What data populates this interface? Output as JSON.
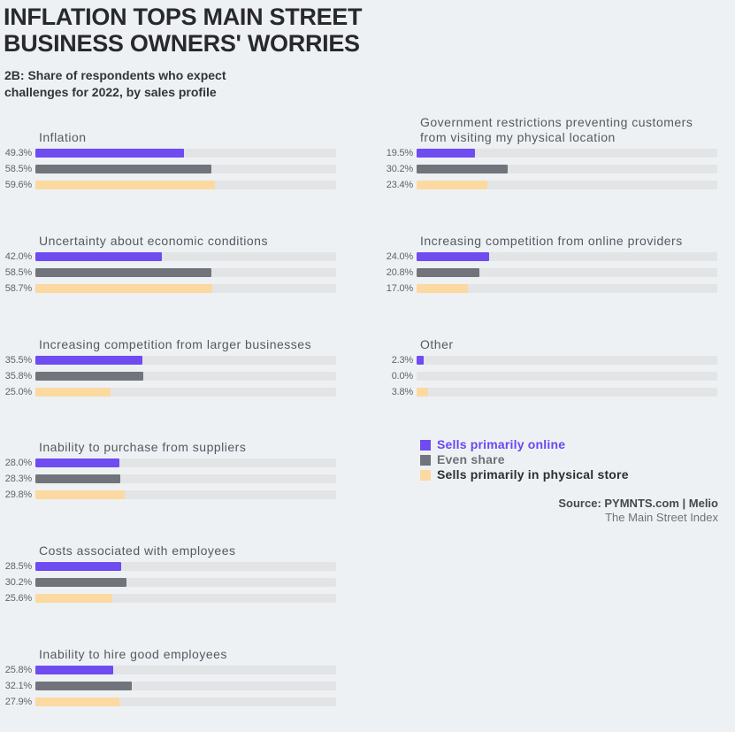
{
  "header": {
    "title_line1": "INFLATION TOPS MAIN STREET",
    "title_line2": "BUSINESS OWNERS' WORRIES",
    "subtitle_line1": "2B: Share of respondents who expect",
    "subtitle_line2": "challenges for 2022, by sales profile"
  },
  "legend": {
    "items": [
      {
        "label": "Sells primarily online",
        "swatch_color": "#6e4cf1",
        "text_color": "#6b46f2"
      },
      {
        "label": "Even share",
        "swatch_color": "#71747b",
        "text_color": "#6d7076"
      },
      {
        "label": "Sells primarily in physical store",
        "swatch_color": "#fbd9a0",
        "text_color": "#2d2e30"
      }
    ]
  },
  "source": {
    "line1": "Source: PYMNTS.com | Melio",
    "line2": "The Main Street Index"
  },
  "chart_data": {
    "type": "bar",
    "orientation": "horizontal",
    "unit": "%",
    "axis_max": 100,
    "grid": false,
    "legend_position": "right-middle",
    "title": "INFLATION TOPS MAIN STREET BUSINESS OWNERS' WORRIES",
    "subtitle": "2B: Share of respondents who expect challenges for 2022, by sales profile",
    "series": [
      "Sells primarily online",
      "Even share",
      "Sells primarily in physical store"
    ],
    "colors": [
      "#6e4cf1",
      "#71747b",
      "#fbd9a0"
    ],
    "groups": [
      {
        "title": "Inflation",
        "column": "left",
        "values": [
          49.3,
          58.5,
          59.6
        ],
        "display": [
          "49.3%",
          "58.5%",
          "59.6%"
        ]
      },
      {
        "title": "Uncertainty about economic conditions",
        "column": "left",
        "values": [
          42.0,
          58.5,
          58.7
        ],
        "display": [
          "42.0%",
          "58.5%",
          "58.7%"
        ]
      },
      {
        "title": "Increasing competition from larger businesses",
        "column": "left",
        "values": [
          35.5,
          35.8,
          25.0
        ],
        "display": [
          "35.5%",
          "35.8%",
          "25.0%"
        ]
      },
      {
        "title": "Inability to purchase from suppliers",
        "column": "left",
        "values": [
          28.0,
          28.3,
          29.8
        ],
        "display": [
          "28.0%",
          "28.3%",
          "29.8%"
        ]
      },
      {
        "title": "Costs associated with employees",
        "column": "left",
        "values": [
          28.5,
          30.2,
          25.6
        ],
        "display": [
          "28.5%",
          "30.2%",
          "25.6%"
        ]
      },
      {
        "title": "Inability to hire good employees",
        "column": "left",
        "values": [
          25.8,
          32.1,
          27.9
        ],
        "display": [
          "25.8%",
          "32.1%",
          "27.9%"
        ]
      },
      {
        "title": "Government restrictions preventing customers from visiting my physical location",
        "column": "right",
        "values": [
          19.5,
          30.2,
          23.4
        ],
        "display": [
          "19.5%",
          "30.2%",
          "23.4%"
        ]
      },
      {
        "title": "Increasing competition from online providers",
        "column": "right",
        "values": [
          24.0,
          20.8,
          17.0
        ],
        "display": [
          "24.0%",
          "20.8%",
          "17.0%"
        ]
      },
      {
        "title": "Other",
        "column": "right",
        "values": [
          2.3,
          0.0,
          3.8
        ],
        "display": [
          "2.3%",
          "0.0%",
          "3.8%"
        ]
      }
    ]
  }
}
